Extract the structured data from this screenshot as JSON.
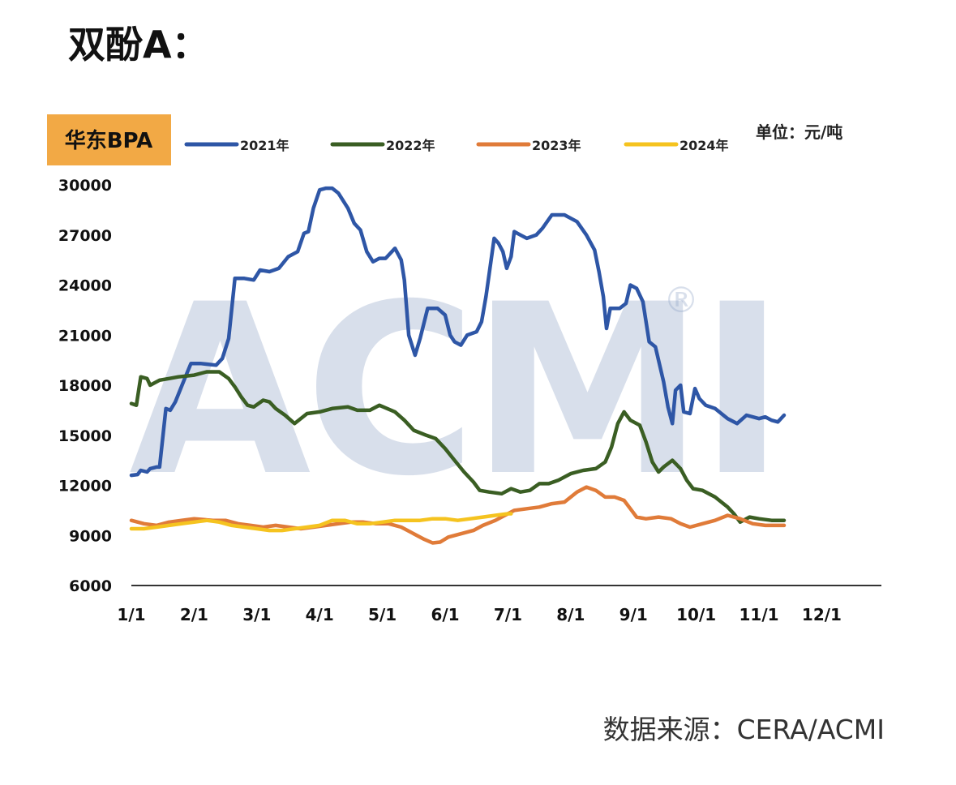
{
  "page": {
    "title": "双酚A：",
    "source": "数据来源：CERA/ACMI"
  },
  "chart_data": {
    "type": "line",
    "title": "华东BPA",
    "unit_label": "单位：元/吨",
    "watermark": "ACMI",
    "xlabel": "",
    "ylabel": "",
    "ylim": [
      6000,
      30000
    ],
    "yticks": [
      6000,
      9000,
      12000,
      15000,
      18000,
      21000,
      24000,
      27000,
      30000
    ],
    "x_unit": "month",
    "xlim": [
      1,
      12.95
    ],
    "xticks": [
      {
        "x": 1,
        "label": "1/1"
      },
      {
        "x": 2,
        "label": "2/1"
      },
      {
        "x": 3,
        "label": "3/1"
      },
      {
        "x": 4,
        "label": "4/1"
      },
      {
        "x": 5,
        "label": "5/1"
      },
      {
        "x": 6,
        "label": "6/1"
      },
      {
        "x": 7,
        "label": "7/1"
      },
      {
        "x": 8,
        "label": "8/1"
      },
      {
        "x": 9,
        "label": "9/1"
      },
      {
        "x": 10,
        "label": "10/1"
      },
      {
        "x": 11,
        "label": "11/1"
      },
      {
        "x": 12,
        "label": "12/1"
      }
    ],
    "grid": false,
    "legend": "top",
    "header_color": "#F2A945",
    "series": [
      {
        "name": "2021年",
        "color": "#2E56A6",
        "points": [
          [
            1.0,
            12600
          ],
          [
            1.1,
            12650
          ],
          [
            1.15,
            12900
          ],
          [
            1.25,
            12800
          ],
          [
            1.3,
            13000
          ],
          [
            1.4,
            13100
          ],
          [
            1.45,
            13100
          ],
          [
            1.55,
            16600
          ],
          [
            1.62,
            16500
          ],
          [
            1.7,
            17000
          ],
          [
            1.85,
            18400
          ],
          [
            1.95,
            19300
          ],
          [
            2.1,
            19300
          ],
          [
            2.35,
            19200
          ],
          [
            2.45,
            19600
          ],
          [
            2.55,
            20800
          ],
          [
            2.65,
            24400
          ],
          [
            2.8,
            24400
          ],
          [
            2.95,
            24300
          ],
          [
            3.05,
            24900
          ],
          [
            3.2,
            24800
          ],
          [
            3.35,
            25000
          ],
          [
            3.5,
            25700
          ],
          [
            3.65,
            26000
          ],
          [
            3.75,
            27100
          ],
          [
            3.82,
            27200
          ],
          [
            3.9,
            28600
          ],
          [
            4.0,
            29700
          ],
          [
            4.1,
            29800
          ],
          [
            4.2,
            29800
          ],
          [
            4.3,
            29500
          ],
          [
            4.45,
            28600
          ],
          [
            4.55,
            27700
          ],
          [
            4.65,
            27300
          ],
          [
            4.75,
            26000
          ],
          [
            4.85,
            25400
          ],
          [
            4.95,
            25600
          ],
          [
            5.05,
            25600
          ],
          [
            5.2,
            26200
          ],
          [
            5.3,
            25500
          ],
          [
            5.35,
            24300
          ],
          [
            5.42,
            21000
          ],
          [
            5.52,
            19800
          ],
          [
            5.6,
            20800
          ],
          [
            5.72,
            22600
          ],
          [
            5.88,
            22600
          ],
          [
            6.0,
            22200
          ],
          [
            6.08,
            21000
          ],
          [
            6.15,
            20600
          ],
          [
            6.25,
            20400
          ],
          [
            6.35,
            21000
          ],
          [
            6.5,
            21200
          ],
          [
            6.58,
            21800
          ],
          [
            6.65,
            23300
          ],
          [
            6.72,
            25200
          ],
          [
            6.78,
            26800
          ],
          [
            6.85,
            26500
          ],
          [
            6.92,
            26000
          ],
          [
            6.98,
            25000
          ],
          [
            7.05,
            25700
          ],
          [
            7.1,
            27200
          ],
          [
            7.2,
            27000
          ],
          [
            7.3,
            26800
          ],
          [
            7.45,
            27000
          ],
          [
            7.55,
            27400
          ],
          [
            7.7,
            28200
          ],
          [
            7.9,
            28200
          ],
          [
            8.1,
            27800
          ],
          [
            8.25,
            27000
          ],
          [
            8.38,
            26100
          ],
          [
            8.45,
            24800
          ],
          [
            8.52,
            23300
          ],
          [
            8.57,
            21400
          ],
          [
            8.63,
            22600
          ],
          [
            8.78,
            22600
          ],
          [
            8.88,
            22900
          ],
          [
            8.95,
            24000
          ],
          [
            9.05,
            23800
          ],
          [
            9.15,
            23000
          ],
          [
            9.25,
            20600
          ],
          [
            9.35,
            20300
          ],
          [
            9.48,
            18200
          ],
          [
            9.55,
            16700
          ],
          [
            9.62,
            15700
          ],
          [
            9.67,
            17700
          ],
          [
            9.75,
            18000
          ],
          [
            9.8,
            16400
          ],
          [
            9.9,
            16300
          ],
          [
            9.98,
            17800
          ],
          [
            10.05,
            17200
          ],
          [
            10.15,
            16800
          ],
          [
            10.3,
            16600
          ],
          [
            10.5,
            16000
          ],
          [
            10.65,
            15700
          ],
          [
            10.8,
            16200
          ],
          [
            11.0,
            16000
          ],
          [
            11.1,
            16100
          ],
          [
            11.2,
            15900
          ],
          [
            11.3,
            15800
          ],
          [
            11.4,
            16200
          ]
        ]
      },
      {
        "name": "2022年",
        "color": "#3A5E23",
        "points": [
          [
            1.0,
            16900
          ],
          [
            1.08,
            16800
          ],
          [
            1.15,
            18500
          ],
          [
            1.25,
            18400
          ],
          [
            1.3,
            18000
          ],
          [
            1.45,
            18300
          ],
          [
            1.6,
            18400
          ],
          [
            1.75,
            18500
          ],
          [
            2.0,
            18600
          ],
          [
            2.2,
            18800
          ],
          [
            2.4,
            18800
          ],
          [
            2.55,
            18400
          ],
          [
            2.65,
            17900
          ],
          [
            2.75,
            17300
          ],
          [
            2.85,
            16800
          ],
          [
            2.95,
            16700
          ],
          [
            3.1,
            17100
          ],
          [
            3.2,
            17000
          ],
          [
            3.3,
            16600
          ],
          [
            3.45,
            16200
          ],
          [
            3.6,
            15700
          ],
          [
            3.8,
            16300
          ],
          [
            4.0,
            16400
          ],
          [
            4.2,
            16600
          ],
          [
            4.45,
            16700
          ],
          [
            4.6,
            16500
          ],
          [
            4.8,
            16500
          ],
          [
            4.95,
            16800
          ],
          [
            5.2,
            16400
          ],
          [
            5.35,
            15900
          ],
          [
            5.5,
            15300
          ],
          [
            5.7,
            15000
          ],
          [
            5.85,
            14800
          ],
          [
            6.0,
            14200
          ],
          [
            6.15,
            13500
          ],
          [
            6.3,
            12800
          ],
          [
            6.45,
            12200
          ],
          [
            6.55,
            11700
          ],
          [
            6.7,
            11600
          ],
          [
            6.9,
            11500
          ],
          [
            7.05,
            11800
          ],
          [
            7.2,
            11600
          ],
          [
            7.35,
            11700
          ],
          [
            7.5,
            12100
          ],
          [
            7.65,
            12100
          ],
          [
            7.8,
            12300
          ],
          [
            8.0,
            12700
          ],
          [
            8.2,
            12900
          ],
          [
            8.4,
            13000
          ],
          [
            8.55,
            13400
          ],
          [
            8.65,
            14300
          ],
          [
            8.75,
            15700
          ],
          [
            8.85,
            16400
          ],
          [
            8.95,
            15900
          ],
          [
            9.1,
            15600
          ],
          [
            9.2,
            14600
          ],
          [
            9.3,
            13400
          ],
          [
            9.4,
            12800
          ],
          [
            9.48,
            13100
          ],
          [
            9.62,
            13500
          ],
          [
            9.75,
            13000
          ],
          [
            9.85,
            12300
          ],
          [
            9.95,
            11800
          ],
          [
            10.1,
            11700
          ],
          [
            10.3,
            11300
          ],
          [
            10.5,
            10700
          ],
          [
            10.6,
            10300
          ],
          [
            10.7,
            9800
          ],
          [
            10.85,
            10100
          ],
          [
            11.0,
            10000
          ],
          [
            11.2,
            9900
          ],
          [
            11.4,
            9900
          ]
        ]
      },
      {
        "name": "2023年",
        "color": "#E07B39",
        "points": [
          [
            1.0,
            9900
          ],
          [
            1.2,
            9700
          ],
          [
            1.4,
            9600
          ],
          [
            1.6,
            9800
          ],
          [
            1.8,
            9900
          ],
          [
            2.0,
            10000
          ],
          [
            2.3,
            9900
          ],
          [
            2.5,
            9900
          ],
          [
            2.7,
            9700
          ],
          [
            2.9,
            9600
          ],
          [
            3.1,
            9500
          ],
          [
            3.3,
            9600
          ],
          [
            3.5,
            9500
          ],
          [
            3.7,
            9400
          ],
          [
            3.9,
            9500
          ],
          [
            4.1,
            9600
          ],
          [
            4.3,
            9700
          ],
          [
            4.5,
            9800
          ],
          [
            4.7,
            9800
          ],
          [
            4.9,
            9700
          ],
          [
            5.1,
            9700
          ],
          [
            5.3,
            9500
          ],
          [
            5.5,
            9100
          ],
          [
            5.65,
            8800
          ],
          [
            5.8,
            8550
          ],
          [
            5.92,
            8600
          ],
          [
            6.05,
            8900
          ],
          [
            6.25,
            9100
          ],
          [
            6.45,
            9300
          ],
          [
            6.6,
            9600
          ],
          [
            6.8,
            9900
          ],
          [
            6.95,
            10200
          ],
          [
            7.1,
            10500
          ],
          [
            7.3,
            10600
          ],
          [
            7.5,
            10700
          ],
          [
            7.7,
            10900
          ],
          [
            7.9,
            11000
          ],
          [
            8.1,
            11600
          ],
          [
            8.25,
            11900
          ],
          [
            8.4,
            11700
          ],
          [
            8.55,
            11300
          ],
          [
            8.7,
            11300
          ],
          [
            8.85,
            11100
          ],
          [
            8.95,
            10600
          ],
          [
            9.05,
            10100
          ],
          [
            9.2,
            10000
          ],
          [
            9.4,
            10100
          ],
          [
            9.6,
            10000
          ],
          [
            9.75,
            9700
          ],
          [
            9.9,
            9500
          ],
          [
            10.1,
            9700
          ],
          [
            10.3,
            9900
          ],
          [
            10.5,
            10200
          ],
          [
            10.7,
            10000
          ],
          [
            10.9,
            9700
          ],
          [
            11.1,
            9600
          ],
          [
            11.4,
            9600
          ]
        ]
      },
      {
        "name": "2024年",
        "color": "#F5C31F",
        "points": [
          [
            1.0,
            9400
          ],
          [
            1.2,
            9400
          ],
          [
            1.4,
            9500
          ],
          [
            1.6,
            9600
          ],
          [
            1.8,
            9700
          ],
          [
            2.0,
            9800
          ],
          [
            2.2,
            9900
          ],
          [
            2.4,
            9800
          ],
          [
            2.6,
            9600
          ],
          [
            2.8,
            9500
          ],
          [
            3.0,
            9400
          ],
          [
            3.2,
            9300
          ],
          [
            3.4,
            9300
          ],
          [
            3.6,
            9400
          ],
          [
            3.8,
            9500
          ],
          [
            4.0,
            9600
          ],
          [
            4.2,
            9900
          ],
          [
            4.4,
            9900
          ],
          [
            4.6,
            9700
          ],
          [
            4.8,
            9700
          ],
          [
            5.0,
            9800
          ],
          [
            5.2,
            9900
          ],
          [
            5.4,
            9900
          ],
          [
            5.6,
            9900
          ],
          [
            5.8,
            10000
          ],
          [
            6.0,
            10000
          ],
          [
            6.2,
            9900
          ],
          [
            6.4,
            10000
          ],
          [
            6.6,
            10100
          ],
          [
            6.8,
            10200
          ],
          [
            7.0,
            10300
          ],
          [
            7.05,
            10300
          ]
        ]
      }
    ]
  }
}
